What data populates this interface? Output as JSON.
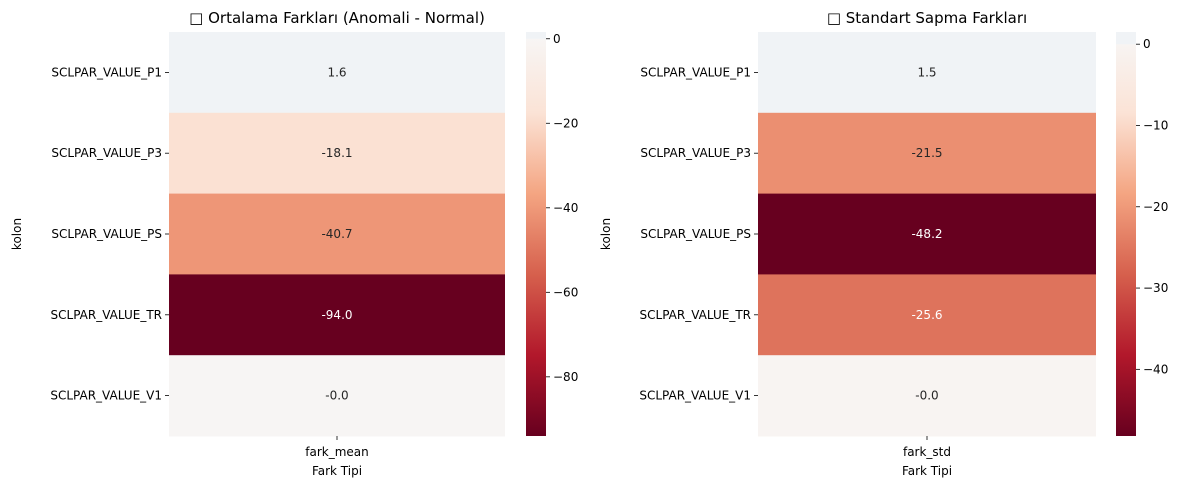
{
  "chart_data": [
    {
      "type": "heatmap",
      "title": "□ Ortalama Farkları (Anomali - Normal)",
      "xlabel": "Fark Tipi",
      "ylabel": "kolon",
      "columns": [
        "fark_mean"
      ],
      "rows": [
        "SCLPAR_VALUE_P1",
        "SCLPAR_VALUE_P3",
        "SCLPAR_VALUE_PS",
        "SCLPAR_VALUE_TR",
        "SCLPAR_VALUE_V1"
      ],
      "values": [
        1.6,
        -18.1,
        -40.7,
        -94.0,
        -0.0
      ],
      "annotations": [
        "1.6",
        "-18.1",
        "-40.7",
        "-94.0",
        "-0.0"
      ],
      "colormap": "RdBu (red half)",
      "colorbar": {
        "range": [
          -94.0,
          1.6
        ],
        "ticks": [
          0,
          -20,
          -40,
          -60,
          -80
        ],
        "tick_labels": [
          "0",
          "−20",
          "−40",
          "−60",
          "−80"
        ]
      }
    },
    {
      "type": "heatmap",
      "title": "□ Standart Sapma Farkları",
      "xlabel": "Fark Tipi",
      "ylabel": "kolon",
      "columns": [
        "fark_std"
      ],
      "rows": [
        "SCLPAR_VALUE_P1",
        "SCLPAR_VALUE_P3",
        "SCLPAR_VALUE_PS",
        "SCLPAR_VALUE_TR",
        "SCLPAR_VALUE_V1"
      ],
      "values": [
        1.5,
        -21.5,
        -48.2,
        -25.6,
        -0.0
      ],
      "annotations": [
        "1.5",
        "-21.5",
        "-48.2",
        "-25.6",
        "-0.0"
      ],
      "colormap": "RdBu (red half)",
      "colorbar": {
        "range": [
          -48.2,
          1.5
        ],
        "ticks": [
          0,
          -10,
          -20,
          -30,
          -40
        ],
        "tick_labels": [
          "0",
          "−10",
          "−20",
          "−30",
          "−40"
        ]
      }
    }
  ]
}
